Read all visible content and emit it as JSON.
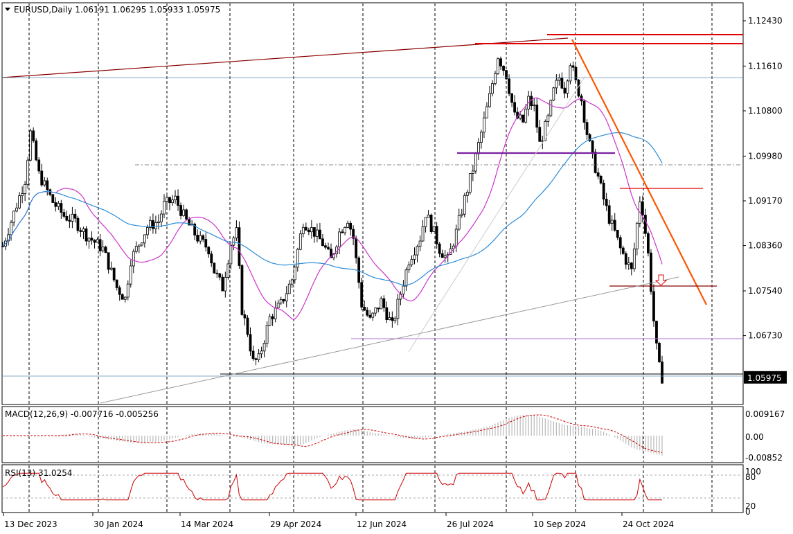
{
  "chart_data": {
    "type": "candlestick",
    "symbol": "EURUSD",
    "timeframe": "Daily",
    "ohlc_header": {
      "open": "1.06191",
      "high": "1.06295",
      "low": "1.05933",
      "close": "1.05975"
    },
    "current_price": "1.05975",
    "price_axis_ticks": [
      "1.12430",
      "1.11610",
      "1.10800",
      "1.09980",
      "1.09170",
      "1.08360",
      "1.07540",
      "1.06730",
      "1.05975"
    ],
    "date_axis_ticks": [
      "13 Dec 2023",
      "30 Jan 2024",
      "14 Mar 2024",
      "29 Apr 2024",
      "12 Jun 2024",
      "26 Jul 2024",
      "10 Sep 2024",
      "24 Oct 2024"
    ],
    "ylim": [
      1.054,
      1.1265
    ],
    "colors": {
      "bull": "#2e7d32",
      "bear": "#b71c1c",
      "ma_fast": "#cc33cc",
      "ma_slow": "#2b8bd6",
      "trend_down": "#ff5500",
      "resistance": "#e00000",
      "purple_level": "#7a1fa2"
    },
    "macd": {
      "label": "MACD(12,26,9) -0.007716 -0.005256",
      "ticks": [
        "0.009167",
        "0.00",
        "-0.00852"
      ]
    },
    "rsi": {
      "label": "RSI(13) 31.0254",
      "ticks": [
        "100",
        "80",
        "20",
        "0"
      ]
    }
  }
}
